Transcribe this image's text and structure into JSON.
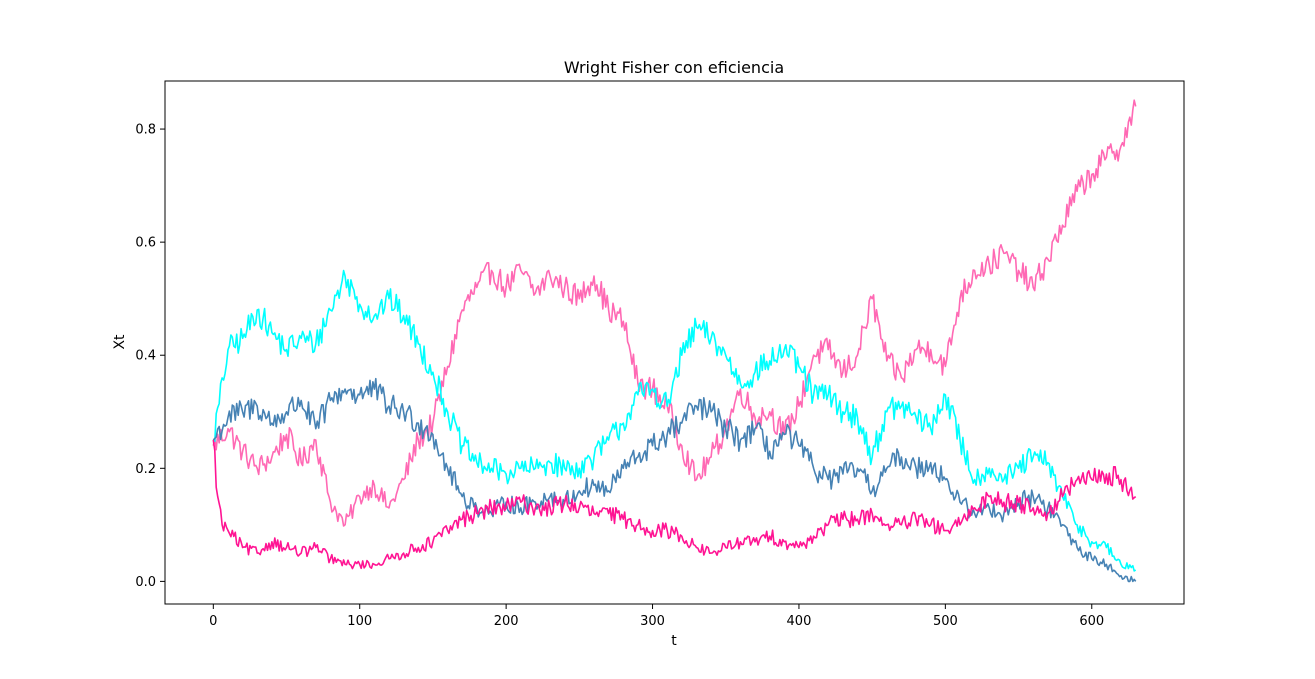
{
  "chart_data": {
    "type": "line",
    "title": "Wright Fisher con eficiencia",
    "xlabel": "t",
    "ylabel": "Xt",
    "xlim": [
      -33,
      663
    ],
    "ylim": [
      -0.04,
      0.885
    ],
    "xticks": [
      0,
      100,
      200,
      300,
      400,
      500,
      600
    ],
    "yticks": [
      0.0,
      0.2,
      0.4,
      0.6,
      0.8
    ],
    "ytick_labels": [
      "0.0",
      "0.2",
      "0.4",
      "0.6",
      "0.8"
    ],
    "grid": false,
    "legend": "none",
    "series": [
      {
        "color": "#ff69b4",
        "x": [
          0,
          10,
          20,
          30,
          40,
          50,
          60,
          70,
          80,
          90,
          100,
          110,
          120,
          130,
          140,
          150,
          160,
          170,
          180,
          190,
          200,
          210,
          220,
          230,
          240,
          250,
          260,
          270,
          280,
          290,
          300,
          310,
          320,
          330,
          340,
          350,
          360,
          370,
          380,
          390,
          400,
          410,
          420,
          430,
          440,
          450,
          460,
          470,
          480,
          490,
          500,
          510,
          520,
          530,
          540,
          550,
          560,
          570,
          580,
          590,
          600,
          610,
          620,
          630
        ],
        "y": [
          0.24,
          0.27,
          0.23,
          0.2,
          0.22,
          0.26,
          0.21,
          0.25,
          0.14,
          0.1,
          0.15,
          0.17,
          0.13,
          0.18,
          0.25,
          0.28,
          0.38,
          0.48,
          0.52,
          0.55,
          0.52,
          0.55,
          0.51,
          0.54,
          0.52,
          0.5,
          0.54,
          0.48,
          0.46,
          0.35,
          0.34,
          0.31,
          0.24,
          0.18,
          0.22,
          0.27,
          0.34,
          0.29,
          0.3,
          0.26,
          0.31,
          0.4,
          0.41,
          0.37,
          0.4,
          0.5,
          0.39,
          0.36,
          0.41,
          0.41,
          0.38,
          0.5,
          0.55,
          0.56,
          0.58,
          0.55,
          0.52,
          0.57,
          0.63,
          0.69,
          0.72,
          0.75,
          0.77,
          0.84
        ]
      },
      {
        "color": "#00ffff",
        "x": [
          0,
          10,
          20,
          30,
          40,
          50,
          60,
          70,
          80,
          90,
          100,
          110,
          120,
          130,
          140,
          150,
          160,
          170,
          180,
          190,
          200,
          210,
          220,
          230,
          240,
          250,
          260,
          270,
          280,
          290,
          300,
          310,
          320,
          330,
          340,
          350,
          360,
          370,
          380,
          390,
          400,
          410,
          420,
          430,
          440,
          450,
          460,
          470,
          480,
          490,
          500,
          510,
          520,
          530,
          540,
          550,
          560,
          570,
          580,
          590,
          600,
          610,
          620,
          630
        ],
        "y": [
          0.25,
          0.41,
          0.43,
          0.48,
          0.44,
          0.41,
          0.43,
          0.42,
          0.48,
          0.54,
          0.49,
          0.47,
          0.5,
          0.47,
          0.42,
          0.37,
          0.3,
          0.24,
          0.21,
          0.2,
          0.19,
          0.2,
          0.2,
          0.21,
          0.2,
          0.2,
          0.22,
          0.25,
          0.28,
          0.33,
          0.34,
          0.31,
          0.4,
          0.45,
          0.43,
          0.4,
          0.35,
          0.37,
          0.39,
          0.41,
          0.38,
          0.33,
          0.33,
          0.3,
          0.29,
          0.22,
          0.3,
          0.31,
          0.29,
          0.27,
          0.33,
          0.25,
          0.18,
          0.2,
          0.18,
          0.2,
          0.22,
          0.21,
          0.15,
          0.1,
          0.07,
          0.06,
          0.03,
          0.02
        ]
      },
      {
        "color": "#4682b4",
        "x": [
          0,
          10,
          20,
          30,
          40,
          50,
          60,
          70,
          80,
          90,
          100,
          110,
          120,
          130,
          140,
          150,
          160,
          170,
          180,
          190,
          200,
          210,
          220,
          230,
          240,
          250,
          260,
          270,
          280,
          290,
          300,
          310,
          320,
          330,
          340,
          350,
          360,
          370,
          380,
          390,
          400,
          410,
          420,
          430,
          440,
          450,
          460,
          470,
          480,
          490,
          500,
          510,
          520,
          530,
          540,
          550,
          560,
          570,
          580,
          590,
          600,
          610,
          620,
          630
        ],
        "y": [
          0.25,
          0.29,
          0.3,
          0.31,
          0.28,
          0.3,
          0.32,
          0.27,
          0.32,
          0.34,
          0.33,
          0.34,
          0.31,
          0.3,
          0.28,
          0.26,
          0.2,
          0.15,
          0.13,
          0.12,
          0.14,
          0.13,
          0.14,
          0.15,
          0.14,
          0.16,
          0.17,
          0.16,
          0.2,
          0.22,
          0.24,
          0.26,
          0.28,
          0.31,
          0.3,
          0.27,
          0.25,
          0.27,
          0.23,
          0.26,
          0.24,
          0.2,
          0.18,
          0.19,
          0.2,
          0.16,
          0.2,
          0.22,
          0.2,
          0.21,
          0.18,
          0.14,
          0.12,
          0.13,
          0.12,
          0.14,
          0.15,
          0.13,
          0.1,
          0.06,
          0.04,
          0.03,
          0.01,
          0.0
        ]
      },
      {
        "color": "#ff1493",
        "x": [
          0,
          3,
          6,
          10,
          20,
          30,
          40,
          50,
          60,
          70,
          80,
          90,
          100,
          110,
          120,
          130,
          140,
          150,
          160,
          170,
          180,
          190,
          200,
          210,
          220,
          230,
          240,
          250,
          260,
          270,
          280,
          290,
          300,
          310,
          320,
          330,
          340,
          350,
          360,
          370,
          380,
          390,
          400,
          410,
          420,
          430,
          440,
          450,
          460,
          470,
          480,
          490,
          500,
          510,
          520,
          530,
          540,
          550,
          560,
          570,
          580,
          590,
          600,
          610,
          620,
          630
        ],
        "y": [
          0.25,
          0.15,
          0.1,
          0.09,
          0.06,
          0.05,
          0.07,
          0.06,
          0.05,
          0.06,
          0.04,
          0.03,
          0.03,
          0.03,
          0.04,
          0.05,
          0.06,
          0.07,
          0.09,
          0.11,
          0.12,
          0.13,
          0.13,
          0.14,
          0.13,
          0.13,
          0.14,
          0.13,
          0.12,
          0.12,
          0.11,
          0.1,
          0.09,
          0.09,
          0.08,
          0.06,
          0.05,
          0.06,
          0.07,
          0.07,
          0.08,
          0.07,
          0.06,
          0.08,
          0.1,
          0.11,
          0.11,
          0.12,
          0.1,
          0.1,
          0.11,
          0.1,
          0.09,
          0.1,
          0.13,
          0.15,
          0.14,
          0.14,
          0.13,
          0.12,
          0.15,
          0.18,
          0.18,
          0.19,
          0.18,
          0.15
        ]
      }
    ]
  }
}
